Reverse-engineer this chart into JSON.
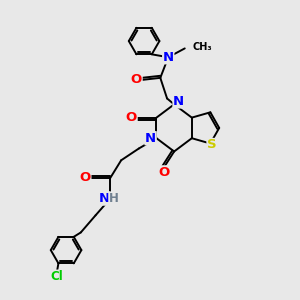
{
  "background_color": "#e8e8e8",
  "atom_colors": {
    "C": "#000000",
    "N": "#0000ff",
    "O": "#ff0000",
    "S": "#cccc00",
    "Cl": "#00cc00",
    "H": "#708090"
  },
  "bond_color": "#000000",
  "bond_lw": 1.4,
  "font_size": 8.5,
  "figsize": [
    3.0,
    3.0
  ],
  "dpi": 100,
  "xlim": [
    0,
    10
  ],
  "ylim": [
    0,
    10
  ]
}
